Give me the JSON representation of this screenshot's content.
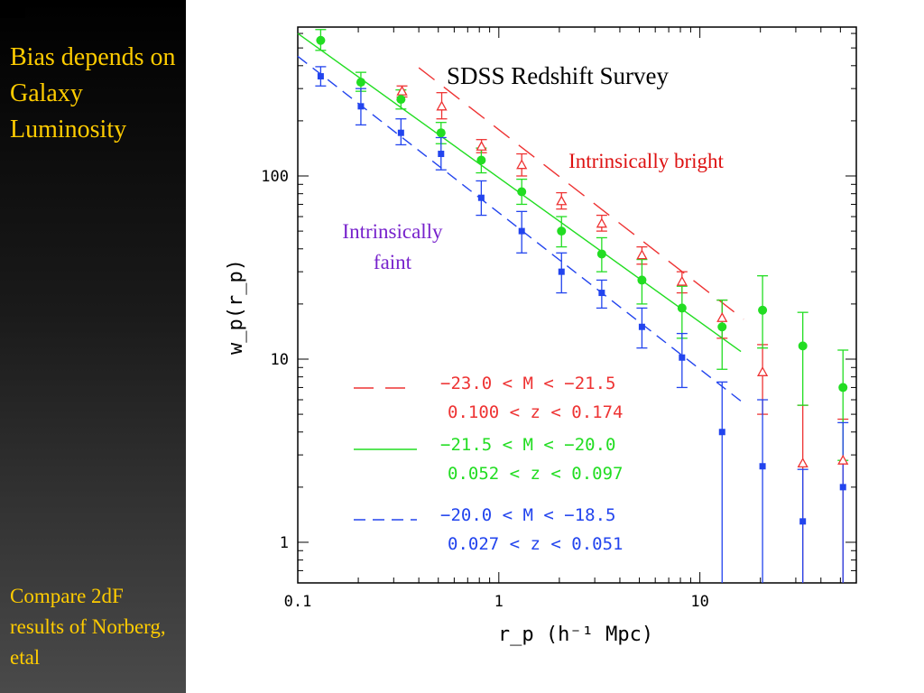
{
  "sidebar": {
    "title": "Bias depends on Galaxy Luminosity",
    "note": "Compare 2dF results of Norberg, etal",
    "text_color": "#ffcc00"
  },
  "chart_data": {
    "type": "scatter",
    "title": "SDSS Redshift Survey",
    "xlabel": "r_p (h⁻¹ Mpc)",
    "ylabel": "w_p(r_p)",
    "xscale": "log",
    "yscale": "log",
    "xlim": [
      0.1,
      60
    ],
    "ylim": [
      0.6,
      650
    ],
    "x_ticks": [
      {
        "value": 0.1,
        "label": "0.1"
      },
      {
        "value": 1,
        "label": "1"
      },
      {
        "value": 10,
        "label": "10"
      }
    ],
    "y_ticks": [
      {
        "value": 1,
        "label": "1"
      },
      {
        "value": 10,
        "label": "10"
      },
      {
        "value": 100,
        "label": "100"
      }
    ],
    "annotations": [
      {
        "text": "Intrinsically bright",
        "color": "#dd1111"
      },
      {
        "text": "Intrinsically",
        "color": "#7722cc"
      },
      {
        "text": "faint",
        "color": "#7722cc"
      }
    ],
    "legend_position": "bottom-center",
    "series": [
      {
        "name": "−23.0 < M < −21.5",
        "subtitle": "0.100 < z < 0.174",
        "color": "#ee3333",
        "marker": "open-triangle",
        "line_style": "long-dash",
        "fit_x": [
          0.4,
          16.5
        ],
        "fit_y": [
          390,
          16.5
        ],
        "points": [
          {
            "x": 0.33,
            "y": 290,
            "lo": 270,
            "hi": 310
          },
          {
            "x": 0.52,
            "y": 240,
            "lo": 205,
            "hi": 285
          },
          {
            "x": 0.82,
            "y": 145,
            "lo": 134,
            "hi": 158
          },
          {
            "x": 1.3,
            "y": 115,
            "lo": 100,
            "hi": 132
          },
          {
            "x": 2.05,
            "y": 73,
            "lo": 66,
            "hi": 81
          },
          {
            "x": 3.25,
            "y": 55,
            "lo": 50,
            "hi": 61
          },
          {
            "x": 5.15,
            "y": 37,
            "lo": 33,
            "hi": 41
          },
          {
            "x": 8.15,
            "y": 26.5,
            "lo": 23,
            "hi": 30
          },
          {
            "x": 12.9,
            "y": 16.8,
            "lo": 13,
            "hi": 21
          },
          {
            "x": 20.5,
            "y": 8.5,
            "lo": 5,
            "hi": 12
          },
          {
            "x": 32.5,
            "y": 2.7,
            "lo": 0.6,
            "hi": 5.6
          },
          {
            "x": 51.5,
            "y": 2.8,
            "lo": 0.6,
            "hi": 4.7
          }
        ]
      },
      {
        "name": "−21.5 < M < −20.0",
        "subtitle": "0.052 < z < 0.097",
        "color": "#22dd22",
        "marker": "filled-circle",
        "line_style": "solid",
        "fit_x": [
          0.1,
          16.0
        ],
        "fit_y": [
          600,
          11
        ],
        "points": [
          {
            "x": 0.13,
            "y": 550,
            "lo": 485,
            "hi": 630
          },
          {
            "x": 0.206,
            "y": 325,
            "lo": 290,
            "hi": 368
          },
          {
            "x": 0.326,
            "y": 262,
            "lo": 232,
            "hi": 295
          },
          {
            "x": 0.516,
            "y": 172,
            "lo": 150,
            "hi": 196
          },
          {
            "x": 0.818,
            "y": 122,
            "lo": 104,
            "hi": 142
          },
          {
            "x": 1.3,
            "y": 82,
            "lo": 70,
            "hi": 96
          },
          {
            "x": 2.05,
            "y": 50,
            "lo": 41,
            "hi": 60
          },
          {
            "x": 3.25,
            "y": 37.5,
            "lo": 30,
            "hi": 46
          },
          {
            "x": 5.15,
            "y": 27,
            "lo": 20,
            "hi": 35
          },
          {
            "x": 8.15,
            "y": 19,
            "lo": 13,
            "hi": 25
          },
          {
            "x": 12.9,
            "y": 15,
            "lo": 8.8,
            "hi": 21
          },
          {
            "x": 20.5,
            "y": 18.5,
            "lo": 11.5,
            "hi": 28.5
          },
          {
            "x": 32.5,
            "y": 11.8,
            "lo": 5.6,
            "hi": 18
          },
          {
            "x": 51.5,
            "y": 7,
            "lo": 2.8,
            "hi": 11.2
          }
        ]
      },
      {
        "name": "−20.0 < M < −18.5",
        "subtitle": "0.027 < z < 0.051",
        "color": "#2244ee",
        "marker": "filled-square",
        "line_style": "short-dash",
        "fit_x": [
          0.1,
          16.0
        ],
        "fit_y": [
          450,
          5.9
        ],
        "points": [
          {
            "x": 0.13,
            "y": 350,
            "lo": 310,
            "hi": 395
          },
          {
            "x": 0.206,
            "y": 240,
            "lo": 190,
            "hi": 300
          },
          {
            "x": 0.326,
            "y": 172,
            "lo": 148,
            "hi": 205
          },
          {
            "x": 0.516,
            "y": 132,
            "lo": 108,
            "hi": 162
          },
          {
            "x": 0.818,
            "y": 76,
            "lo": 61,
            "hi": 94
          },
          {
            "x": 1.3,
            "y": 50,
            "lo": 38,
            "hi": 64
          },
          {
            "x": 2.05,
            "y": 30,
            "lo": 23,
            "hi": 38
          },
          {
            "x": 3.25,
            "y": 23,
            "lo": 19,
            "hi": 27
          },
          {
            "x": 5.15,
            "y": 15,
            "lo": 11.5,
            "hi": 19
          },
          {
            "x": 8.15,
            "y": 10.2,
            "lo": 7,
            "hi": 13.8
          },
          {
            "x": 12.9,
            "y": 4,
            "lo": 0.6,
            "hi": 7.5
          },
          {
            "x": 20.5,
            "y": 2.6,
            "lo": 0.6,
            "hi": 6
          },
          {
            "x": 32.5,
            "y": 1.3,
            "lo": 0.6,
            "hi": 2.5
          },
          {
            "x": 51.5,
            "y": 2.0,
            "lo": 0.6,
            "hi": 4.5
          }
        ]
      }
    ]
  }
}
